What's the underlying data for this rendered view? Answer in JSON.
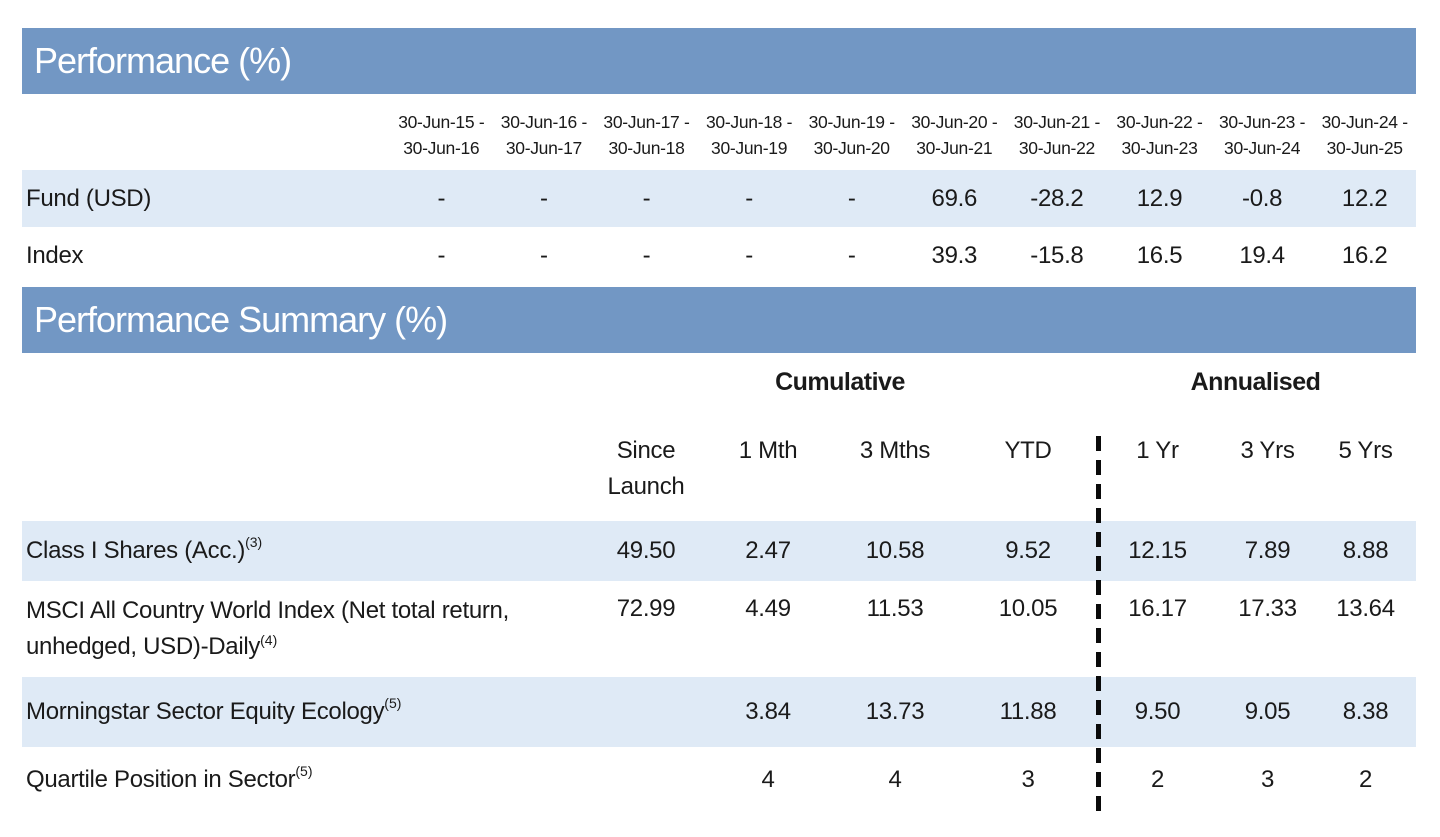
{
  "colors": {
    "section_header_bg": "#7297C4",
    "row_alt_bg": "#DFEAF6",
    "divider": "#0A0A0A",
    "text": "#1A1A1A",
    "header_text": "#FFFFFF"
  },
  "performance": {
    "title": "Performance (%)",
    "periods": [
      {
        "line1": "30-Jun-15 -",
        "line2": "30-Jun-16"
      },
      {
        "line1": "30-Jun-16 -",
        "line2": "30-Jun-17"
      },
      {
        "line1": "30-Jun-17 -",
        "line2": "30-Jun-18"
      },
      {
        "line1": "30-Jun-18 -",
        "line2": "30-Jun-19"
      },
      {
        "line1": "30-Jun-19 -",
        "line2": "30-Jun-20"
      },
      {
        "line1": "30-Jun-20 -",
        "line2": "30-Jun-21"
      },
      {
        "line1": "30-Jun-21 -",
        "line2": "30-Jun-22"
      },
      {
        "line1": "30-Jun-22 -",
        "line2": "30-Jun-23"
      },
      {
        "line1": "30-Jun-23 -",
        "line2": "30-Jun-24"
      },
      {
        "line1": "30-Jun-24 -",
        "line2": "30-Jun-25"
      }
    ],
    "rows": [
      {
        "label": "Fund (USD)",
        "values": [
          "-",
          "-",
          "-",
          "-",
          "-",
          "69.6",
          "-28.2",
          "12.9",
          "-0.8",
          "12.2"
        ]
      },
      {
        "label": "Index",
        "values": [
          "-",
          "-",
          "-",
          "-",
          "-",
          "39.3",
          "-15.8",
          "16.5",
          "19.4",
          "16.2"
        ]
      }
    ]
  },
  "summary": {
    "title": "Performance Summary (%)",
    "group_headers": {
      "cumulative": "Cumulative",
      "annualised": "Annualised"
    },
    "columns": [
      "Since Launch",
      "1 Mth",
      "3 Mths",
      "YTD",
      "1 Yr",
      "3 Yrs",
      "5 Yrs"
    ],
    "rows": [
      {
        "label": "Class I Shares (Acc.)",
        "sup": "(3)",
        "values": [
          "49.50",
          "2.47",
          "10.58",
          "9.52",
          "12.15",
          "7.89",
          "8.88"
        ]
      },
      {
        "label": "MSCI All Country World Index (Net total return, unhedged, USD)-Daily",
        "sup": "(4)",
        "values": [
          "72.99",
          "4.49",
          "11.53",
          "10.05",
          "16.17",
          "17.33",
          "13.64"
        ]
      },
      {
        "label": "Morningstar Sector Equity Ecology",
        "sup": "(5)",
        "values": [
          "",
          "3.84",
          "13.73",
          "11.88",
          "9.50",
          "9.05",
          "8.38"
        ]
      },
      {
        "label": "Quartile Position in Sector",
        "sup": "(5)",
        "values": [
          "",
          "4",
          "4",
          "3",
          "2",
          "3",
          "2"
        ]
      }
    ]
  }
}
